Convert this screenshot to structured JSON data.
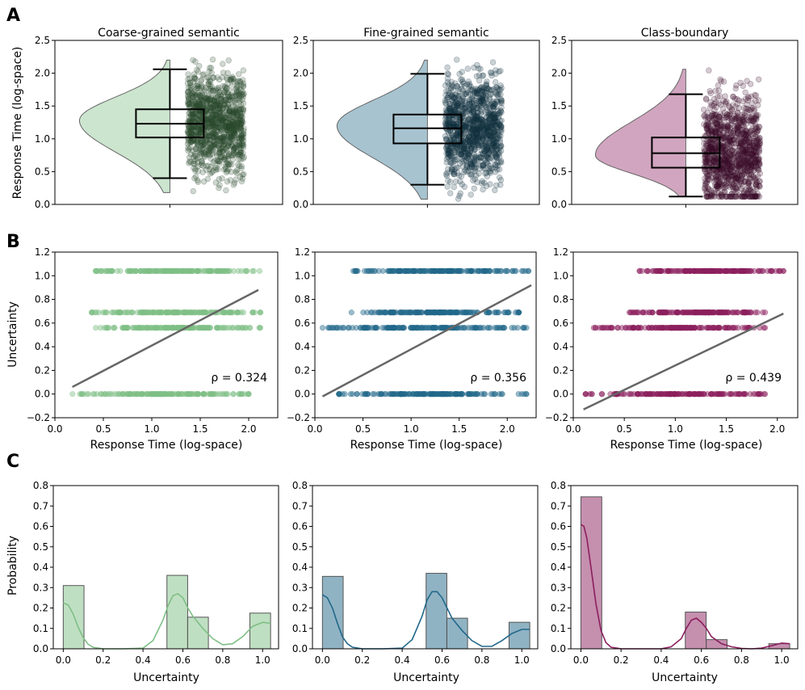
{
  "panel_labels": [
    "A",
    "B",
    "C"
  ],
  "colors": {
    "coarse": "#7fbf86",
    "fine": "#22688a",
    "boundary": "#8b1f5e",
    "coarse_dark": "#2a4a2c",
    "fine_dark": "#10323f",
    "boundary_dark": "#3a0c2a",
    "regression": "#666666"
  },
  "chart_data": [
    {
      "panel": "A",
      "type": "violin-box-strip",
      "title": "Coarse-grained semantic",
      "ylabel": "Response Time (log-space)",
      "ylim": [
        0,
        2.5
      ],
      "yticks": [
        "0.0",
        "0.5",
        "1.0",
        "1.5",
        "2.0",
        "2.5"
      ],
      "box": {
        "whisker_low": 0.4,
        "q1": 1.02,
        "median": 1.23,
        "q3": 1.45,
        "whisker_high": 2.06
      },
      "violin_range": [
        0.18,
        2.2
      ],
      "violin_mode": 1.28,
      "strip_range": [
        0.2,
        2.22
      ]
    },
    {
      "panel": "A",
      "type": "violin-box-strip",
      "title": "Fine-grained semantic",
      "ylabel": "",
      "ylim": [
        0,
        2.5
      ],
      "yticks": [
        "0.0",
        "0.5",
        "1.0",
        "1.5",
        "2.0",
        "2.5"
      ],
      "box": {
        "whisker_low": 0.3,
        "q1": 0.93,
        "median": 1.16,
        "q3": 1.37,
        "whisker_high": 1.99
      },
      "violin_range": [
        0.08,
        2.2
      ],
      "violin_mode": 1.2,
      "strip_range": [
        0.08,
        2.22
      ]
    },
    {
      "panel": "A",
      "type": "violin-box-strip",
      "title": "Class-boundary",
      "ylabel": "",
      "ylim": [
        0,
        2.5
      ],
      "yticks": [
        "0.0",
        "0.5",
        "1.0",
        "1.5",
        "2.0",
        "2.5"
      ],
      "box": {
        "whisker_low": 0.12,
        "q1": 0.56,
        "median": 0.78,
        "q3": 1.02,
        "whisker_high": 1.68
      },
      "violin_range": [
        0.12,
        2.06
      ],
      "violin_mode": 0.75,
      "strip_range": [
        0.12,
        2.06
      ]
    },
    {
      "panel": "B",
      "type": "scatter",
      "xlabel": "Response Time (log-space)",
      "ylabel": "Uncertainty",
      "xlim": [
        0.0,
        2.3
      ],
      "ylim": [
        -0.2,
        1.2
      ],
      "xticks": [
        "0.0",
        "0.5",
        "1.0",
        "1.5",
        "2.0"
      ],
      "yticks": [
        "−0.2",
        "0.0",
        "0.2",
        "0.4",
        "0.6",
        "0.8",
        "1.0",
        "1.2"
      ],
      "levels": [
        {
          "y": 0.0,
          "x_range": [
            0.18,
            2.0
          ]
        },
        {
          "y": 0.56,
          "x_range": [
            0.38,
            2.12
          ]
        },
        {
          "y": 0.69,
          "x_range": [
            0.38,
            2.12
          ]
        },
        {
          "y": 1.04,
          "x_range": [
            0.42,
            2.12
          ]
        }
      ],
      "regression": {
        "x": [
          0.18,
          2.1
        ],
        "y": [
          0.06,
          0.88
        ]
      },
      "rho_label": "ρ = 0.324"
    },
    {
      "panel": "B",
      "type": "scatter",
      "xlabel": "Response Time (log-space)",
      "ylabel": "",
      "xlim": [
        0.0,
        2.3
      ],
      "ylim": [
        -0.2,
        1.2
      ],
      "xticks": [
        "0.0",
        "0.5",
        "1.0",
        "1.5",
        "2.0"
      ],
      "yticks": [
        "−0.2",
        "0.0",
        "0.2",
        "0.4",
        "0.6",
        "0.8",
        "1.0",
        "1.2"
      ],
      "levels": [
        {
          "y": 0.0,
          "x_range": [
            0.25,
            2.2
          ]
        },
        {
          "y": 0.56,
          "x_range": [
            0.08,
            2.2
          ]
        },
        {
          "y": 0.69,
          "x_range": [
            0.38,
            2.12
          ]
        },
        {
          "y": 1.04,
          "x_range": [
            0.38,
            2.22
          ]
        }
      ],
      "regression": {
        "x": [
          0.08,
          2.25
        ],
        "y": [
          -0.02,
          0.92
        ]
      },
      "rho_label": "ρ = 0.356"
    },
    {
      "panel": "B",
      "type": "scatter",
      "xlabel": "Response Time (log-space)",
      "ylabel": "",
      "xlim": [
        0.0,
        2.2
      ],
      "ylim": [
        -0.2,
        1.2
      ],
      "xticks": [
        "0.0",
        "0.5",
        "1.0",
        "1.5",
        "2.0"
      ],
      "yticks": [
        "−0.2",
        "0.0",
        "0.2",
        "0.4",
        "0.6",
        "0.8",
        "1.0",
        "1.2"
      ],
      "levels": [
        {
          "y": 0.0,
          "x_range": [
            0.12,
            1.88
          ]
        },
        {
          "y": 0.56,
          "x_range": [
            0.2,
            1.88
          ]
        },
        {
          "y": 0.69,
          "x_range": [
            0.55,
            1.88
          ]
        },
        {
          "y": 1.04,
          "x_range": [
            0.65,
            2.06
          ]
        }
      ],
      "regression": {
        "x": [
          0.1,
          2.06
        ],
        "y": [
          -0.13,
          0.68
        ]
      },
      "rho_label": "ρ = 0.439"
    },
    {
      "panel": "C",
      "type": "bar+kde",
      "xlabel": "Uncertainty",
      "ylabel": "Probability",
      "xlim": [
        -0.05,
        1.08
      ],
      "ylim": [
        0,
        0.8
      ],
      "xticks": [
        "0.0",
        "0.2",
        "0.4",
        "0.6",
        "0.8",
        "1.0"
      ],
      "yticks": [
        "0.0",
        "0.1",
        "0.2",
        "0.3",
        "0.4",
        "0.5",
        "0.6",
        "0.7",
        "0.8"
      ],
      "bins": [
        {
          "x0": 0.0,
          "x1": 0.104,
          "value": 0.31
        },
        {
          "x0": 0.52,
          "x1": 0.624,
          "value": 0.36
        },
        {
          "x0": 0.624,
          "x1": 0.728,
          "value": 0.155
        },
        {
          "x0": 0.936,
          "x1": 1.04,
          "value": 0.175
        }
      ],
      "kde": {
        "x": [
          0.0,
          0.025,
          0.05,
          0.075,
          0.1,
          0.125,
          0.15,
          0.2,
          0.3,
          0.4,
          0.45,
          0.5,
          0.525,
          0.55,
          0.575,
          0.6,
          0.625,
          0.65,
          0.7,
          0.75,
          0.8,
          0.85,
          0.9,
          0.95,
          1.0,
          1.04
        ],
        "y": [
          0.225,
          0.215,
          0.17,
          0.105,
          0.055,
          0.022,
          0.007,
          0.0,
          0.0,
          0.003,
          0.04,
          0.14,
          0.21,
          0.26,
          0.27,
          0.25,
          0.2,
          0.16,
          0.1,
          0.05,
          0.02,
          0.025,
          0.06,
          0.11,
          0.13,
          0.125
        ]
      }
    },
    {
      "panel": "C",
      "type": "bar+kde",
      "xlabel": "Uncertainty",
      "ylabel": "",
      "xlim": [
        -0.05,
        1.08
      ],
      "ylim": [
        0,
        0.8
      ],
      "xticks": [
        "0.0",
        "0.2",
        "0.4",
        "0.6",
        "0.8",
        "1.0"
      ],
      "yticks": [
        "0.0",
        "0.1",
        "0.2",
        "0.3",
        "0.4",
        "0.5",
        "0.6",
        "0.7",
        "0.8"
      ],
      "bins": [
        {
          "x0": 0.0,
          "x1": 0.104,
          "value": 0.355
        },
        {
          "x0": 0.52,
          "x1": 0.624,
          "value": 0.37
        },
        {
          "x0": 0.624,
          "x1": 0.728,
          "value": 0.15
        },
        {
          "x0": 0.936,
          "x1": 1.04,
          "value": 0.13
        }
      ],
      "kde": {
        "x": [
          0.0,
          0.025,
          0.05,
          0.075,
          0.1,
          0.125,
          0.15,
          0.2,
          0.3,
          0.4,
          0.45,
          0.5,
          0.525,
          0.55,
          0.575,
          0.6,
          0.625,
          0.65,
          0.7,
          0.75,
          0.8,
          0.85,
          0.9,
          0.95,
          1.0,
          1.04
        ],
        "y": [
          0.265,
          0.25,
          0.2,
          0.125,
          0.06,
          0.025,
          0.008,
          0.0,
          0.0,
          0.003,
          0.045,
          0.16,
          0.24,
          0.28,
          0.28,
          0.25,
          0.2,
          0.15,
          0.09,
          0.04,
          0.012,
          0.012,
          0.04,
          0.075,
          0.095,
          0.095
        ]
      }
    },
    {
      "panel": "C",
      "type": "bar+kde",
      "xlabel": "Uncertainty",
      "ylabel": "",
      "xlim": [
        -0.05,
        1.08
      ],
      "ylim": [
        0,
        0.8
      ],
      "xticks": [
        "0.0",
        "0.2",
        "0.4",
        "0.6",
        "0.8",
        "1.0"
      ],
      "yticks": [
        "0.0",
        "0.1",
        "0.2",
        "0.3",
        "0.4",
        "0.5",
        "0.6",
        "0.7",
        "0.8"
      ],
      "bins": [
        {
          "x0": 0.0,
          "x1": 0.104,
          "value": 0.745
        },
        {
          "x0": 0.52,
          "x1": 0.624,
          "value": 0.18
        },
        {
          "x0": 0.624,
          "x1": 0.728,
          "value": 0.045
        },
        {
          "x0": 0.936,
          "x1": 1.04,
          "value": 0.025
        }
      ],
      "kde": {
        "x": [
          0.0,
          0.015,
          0.03,
          0.05,
          0.075,
          0.1,
          0.125,
          0.15,
          0.2,
          0.3,
          0.4,
          0.45,
          0.5,
          0.525,
          0.55,
          0.575,
          0.6,
          0.625,
          0.65,
          0.7,
          0.75,
          0.8,
          0.85,
          0.9,
          0.95,
          1.0,
          1.04
        ],
        "y": [
          0.61,
          0.6,
          0.54,
          0.4,
          0.22,
          0.09,
          0.03,
          0.008,
          0.0,
          0.0,
          0.0,
          0.01,
          0.05,
          0.1,
          0.14,
          0.15,
          0.13,
          0.1,
          0.06,
          0.025,
          0.01,
          0.002,
          0.0,
          0.003,
          0.015,
          0.028,
          0.025
        ]
      }
    }
  ]
}
